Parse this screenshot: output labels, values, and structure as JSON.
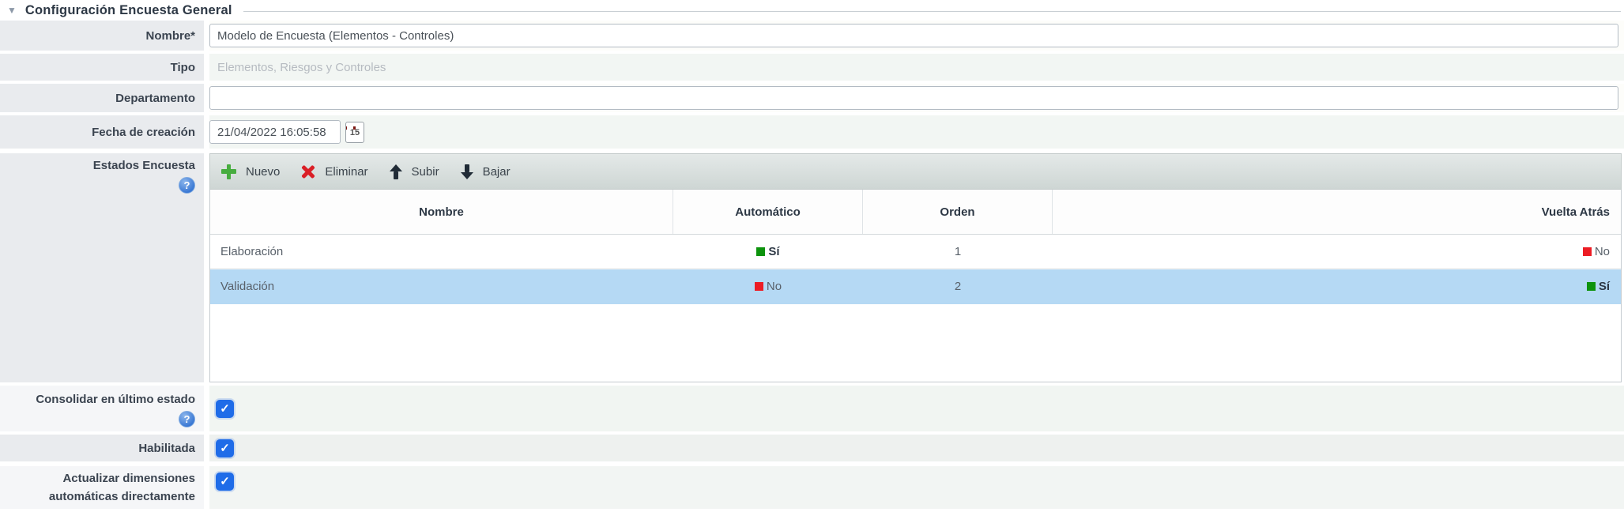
{
  "legend": {
    "title": "Configuración Encuesta General",
    "collapse_icon": "▼"
  },
  "fields": {
    "nombre": {
      "label": "Nombre*",
      "value": "Modelo de Encuesta (Elementos - Controles)"
    },
    "tipo": {
      "label": "Tipo",
      "value": "Elementos, Riesgos y Controles"
    },
    "departamento": {
      "label": "Departamento",
      "value": ""
    },
    "fecha": {
      "label": "Fecha de creación",
      "value": "21/04/2022 16:05:58",
      "calendar_day": "15"
    }
  },
  "estados": {
    "label": "Estados Encuesta",
    "help_icon": "?",
    "toolbar": [
      {
        "label": "Nuevo"
      },
      {
        "label": "Eliminar"
      },
      {
        "label": "Subir"
      },
      {
        "label": "Bajar"
      }
    ],
    "table": {
      "headers": [
        "Nombre",
        "Automático",
        "Orden",
        "Vuelta Atrás"
      ],
      "rows": [
        {
          "nombre": "Elaboración",
          "automatico": {
            "text": "Sí",
            "color": "#0d930d",
            "bold": true
          },
          "orden": "1",
          "vuelta": {
            "text": "No",
            "color": "#ec1c24",
            "bold": false
          },
          "selected": false
        },
        {
          "nombre": "Validación",
          "automatico": {
            "text": "No",
            "color": "#ec1c24",
            "bold": false
          },
          "orden": "2",
          "vuelta": {
            "text": "Sí",
            "color": "#0d930d",
            "bold": true
          },
          "selected": true
        }
      ]
    }
  },
  "checkboxes": {
    "consolidar": {
      "label": "Consolidar en último estado",
      "help_icon": "?",
      "checked": true
    },
    "habilitada": {
      "label": "Habilitada",
      "checked": true
    },
    "actualizar": {
      "label": "Actualizar dimensiones automáticas directamente",
      "checked": true
    }
  },
  "colors": {
    "checkbox_blue": "#1f6ce8",
    "selected_row_blue": "#b5d9f4",
    "si_green": "#0d930d",
    "no_red": "#ec1c24"
  }
}
